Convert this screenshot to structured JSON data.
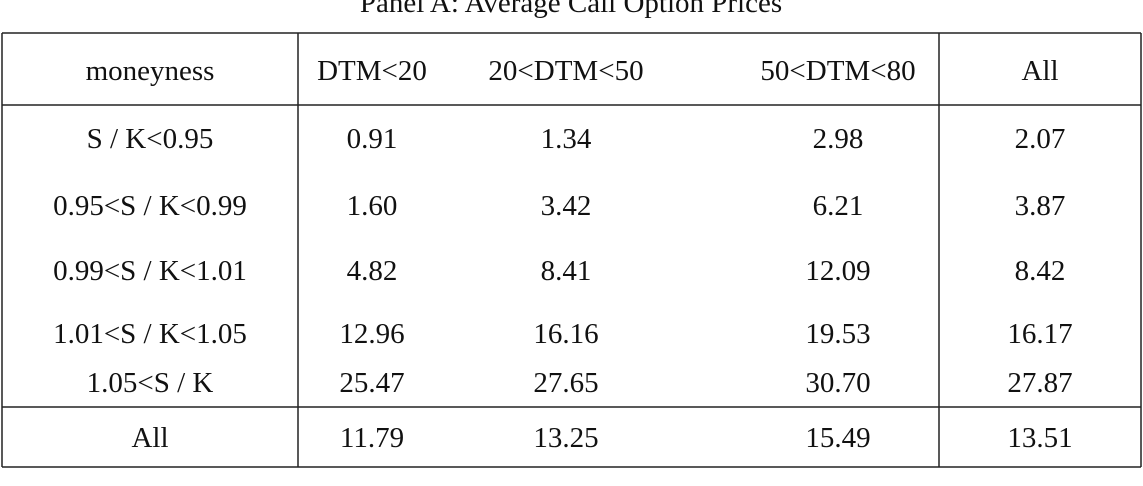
{
  "title": "Panel A: Average Call Option Prices",
  "table": {
    "header": [
      "moneyness",
      "DTM<20",
      "20<DTM<50",
      "50<DTM<80",
      "All"
    ],
    "rows": [
      [
        "S / K<0.95",
        "0.91",
        "1.34",
        "2.98",
        "2.07"
      ],
      [
        "0.95<S / K<0.99",
        "1.60",
        "3.42",
        "6.21",
        "3.87"
      ],
      [
        "0.99<S / K<1.01",
        "4.82",
        "8.41",
        "12.09",
        "8.42"
      ],
      [
        "1.01<S / K<1.05",
        "12.96",
        "16.16",
        "19.53",
        "16.17"
      ],
      [
        "1.05<S / K",
        "25.47",
        "27.65",
        "30.70",
        "27.87"
      ],
      [
        "All",
        "11.79",
        "13.25",
        "15.49",
        "13.51"
      ]
    ]
  }
}
